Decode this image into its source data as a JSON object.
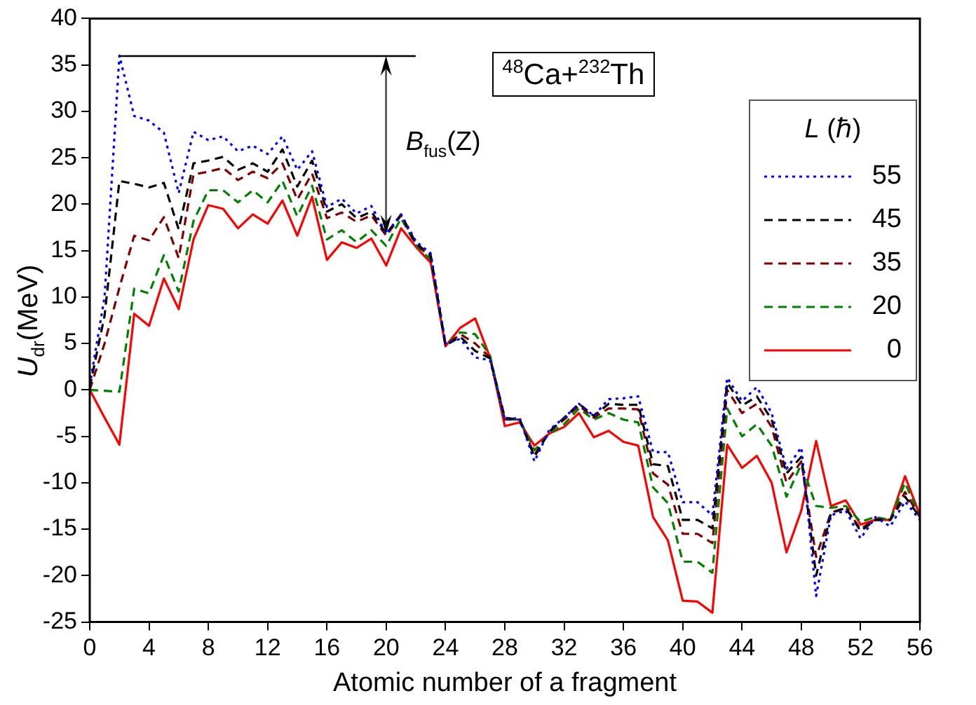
{
  "chart_data": {
    "type": "line",
    "xlabel": "Atomic number of a fragment",
    "ylabel": "U$_{dr}$(MeV)",
    "legend_title": "L (ℏ)",
    "legend": "top right",
    "grid": false,
    "marker": "none",
    "x": [
      0,
      1,
      2,
      3,
      4,
      5,
      6,
      7,
      8,
      9,
      10,
      11,
      12,
      13,
      14,
      15,
      16,
      17,
      18,
      19,
      20,
      21,
      22,
      23,
      24,
      25,
      26,
      27,
      28,
      29,
      30,
      31,
      32,
      33,
      34,
      35,
      36,
      37,
      38,
      39,
      40,
      41,
      42,
      43,
      44,
      45,
      46,
      47,
      48,
      49,
      50,
      51,
      52,
      53,
      54,
      55,
      56
    ],
    "xlim": [
      0,
      56
    ],
    "xticks": [
      0,
      4,
      8,
      12,
      16,
      20,
      24,
      28,
      32,
      36,
      40,
      44,
      48,
      52,
      56
    ],
    "ylim": [
      -25,
      40
    ],
    "yticks": [
      -25,
      -20,
      -15,
      -10,
      -5,
      0,
      5,
      10,
      15,
      20,
      25,
      30,
      35,
      40
    ],
    "series": [
      {
        "name": "55",
        "color": "#0000ff",
        "line_style": "dotted",
        "values": [
          0.5,
          10,
          36,
          29.5,
          29,
          27.7,
          21.2,
          27.8,
          26.9,
          27.3,
          25.7,
          26.3,
          25.4,
          27.3,
          23.7,
          25.7,
          19.7,
          20.6,
          19,
          19.8,
          16.8,
          18.9,
          16,
          14.7,
          5,
          5.5,
          3.5,
          3.2,
          -3.2,
          -3,
          -7.7,
          -4.3,
          -3,
          -1.5,
          -2.8,
          -1,
          -0.9,
          -0.7,
          -6.7,
          -6.7,
          -12.1,
          -12.1,
          -13.5,
          1.3,
          -1.2,
          0.3,
          -2.5,
          -8.5,
          -6.2,
          -22.2,
          -13.5,
          -13,
          -16,
          -13.7,
          -14.7,
          -12,
          -14
        ]
      },
      {
        "name": "45",
        "color": "#000000",
        "line_style": "dashed",
        "values": [
          0.3,
          8,
          22.5,
          22.2,
          21.8,
          22.3,
          17.3,
          24.4,
          24.7,
          25.1,
          23.7,
          24.4,
          23.5,
          25.9,
          21.9,
          24.7,
          19.2,
          20,
          18.5,
          19.2,
          16.8,
          18.9,
          15.8,
          14.5,
          4.8,
          5.7,
          4.2,
          3.4,
          -3,
          -3.2,
          -7.2,
          -4.5,
          -3,
          -1.5,
          -2.8,
          -1.5,
          -1.6,
          -1.6,
          -8,
          -8.2,
          -14,
          -14,
          -14.9,
          0.8,
          -1.7,
          -0.7,
          -3.2,
          -9,
          -7.2,
          -20,
          -13.3,
          -12.7,
          -15.2,
          -14,
          -14,
          -11.5,
          -13.7
        ]
      },
      {
        "name": "35",
        "color": "#800000",
        "line_style": "dashed",
        "values": [
          0,
          5,
          11,
          16.6,
          16.1,
          18.6,
          14.2,
          23.2,
          23.5,
          23.9,
          22.6,
          23.5,
          22.8,
          24.4,
          20.5,
          23.3,
          18.5,
          19.1,
          18.1,
          18.8,
          16.6,
          18.8,
          15.7,
          14.3,
          4.8,
          6,
          5,
          3.5,
          -3.2,
          -3.2,
          -7,
          -4.5,
          -3.2,
          -1.7,
          -3,
          -2,
          -2,
          -2.1,
          -9,
          -10.2,
          -15.5,
          -15.5,
          -16.5,
          0,
          -2.5,
          -1.5,
          -4,
          -10,
          -7.7,
          -18,
          -13.2,
          -12.7,
          -15,
          -13.9,
          -14,
          -11,
          -13.7
        ]
      },
      {
        "name": "20",
        "color": "#008000",
        "line_style": "dashed",
        "values": [
          0,
          -0.1,
          -0.2,
          10.9,
          10.4,
          14.5,
          10.6,
          18.2,
          21.5,
          21.5,
          20.2,
          21.5,
          20.2,
          22.5,
          18.7,
          22,
          16.2,
          17.2,
          15.9,
          17.2,
          15.5,
          18.5,
          15.6,
          14,
          4.8,
          6.2,
          6,
          3.7,
          -3.2,
          -3.2,
          -6.5,
          -4.7,
          -3.7,
          -2,
          -3.2,
          -2.5,
          -3.2,
          -3.5,
          -10.5,
          -12.2,
          -18.5,
          -18.5,
          -19.7,
          -2,
          -5,
          -3.7,
          -6,
          -11.5,
          -8,
          -12.5,
          -12.7,
          -12.5,
          -14.2,
          -13.7,
          -14,
          -10,
          -13.7
        ]
      },
      {
        "name": "0",
        "color": "#ff0000",
        "line_style": "solid",
        "values": [
          0,
          -3,
          -5.9,
          8.2,
          6.9,
          12,
          8.7,
          16.2,
          19.9,
          19.5,
          17.4,
          18.9,
          17.9,
          20.4,
          16.6,
          20.8,
          14,
          15.9,
          15.3,
          16.3,
          13.4,
          17.4,
          15.4,
          13.7,
          4.7,
          6.7,
          7.7,
          3.5,
          -3.9,
          -3.5,
          -6,
          -4.7,
          -4,
          -2.5,
          -5.1,
          -4.4,
          -5.6,
          -6,
          -13.7,
          -16.2,
          -22.7,
          -22.8,
          -24,
          -5.9,
          -8.4,
          -7.1,
          -10,
          -17.5,
          -13,
          -5.5,
          -12.5,
          -11.9,
          -14.5,
          -14,
          -14,
          -9.3,
          -13.5
        ]
      }
    ],
    "annotations": [
      "$^{48}$Ca+$^{232}$Th",
      {
        "text": "B$_{fus}$(Z)",
        "x": 20,
        "y": 16.8
      }
    ]
  }
}
